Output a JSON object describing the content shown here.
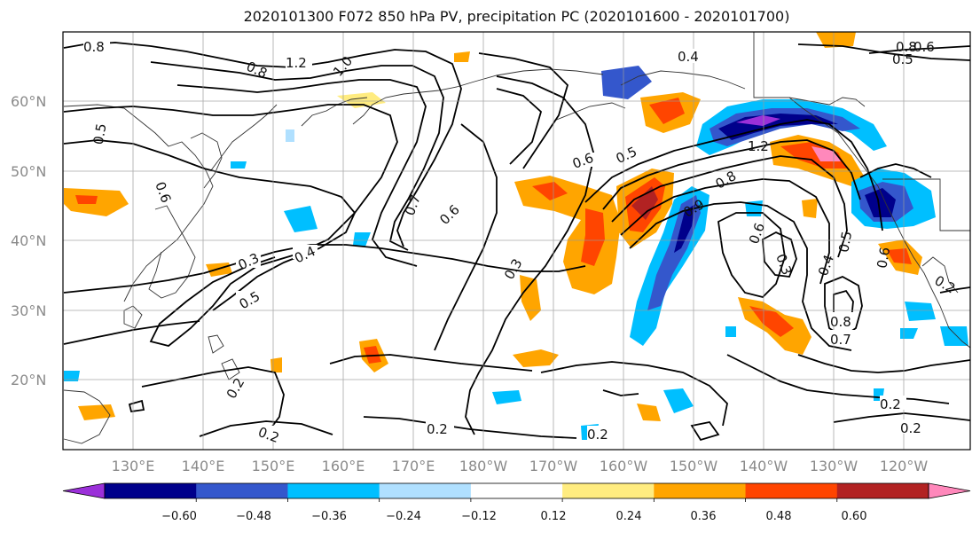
{
  "title": "2020101300 F072 850 hPa PV, precipitation PC (2020101600 - 2020101700)",
  "map": {
    "lat_labels": [
      "60°N",
      "50°N",
      "40°N",
      "30°N",
      "20°N"
    ],
    "lon_labels": [
      "130°E",
      "140°E",
      "150°E",
      "160°E",
      "170°E",
      "180°W",
      "170°W",
      "160°W",
      "150°W",
      "140°W",
      "130°W",
      "120°W"
    ],
    "contour_labels": [
      "0.8",
      "1.2",
      "1.0",
      "0.8",
      "0.4",
      "0.8",
      "0.5",
      "0.6",
      "0.5",
      "0.6",
      "0.5",
      "0.7",
      "0.6",
      "0.3",
      "0.4",
      "0.5",
      "0.3",
      "1.2",
      "0.8",
      "0.9",
      "0.6",
      "0.3",
      "0.4",
      "0.5",
      "0.6",
      "0.8",
      "0.7",
      "0.2",
      "0.2",
      "0.2",
      "0.2",
      "0.2",
      "0.2",
      "0.6",
      "0.2"
    ],
    "colors": {
      "coast": "#333333",
      "contour": "#000000",
      "grid": "#9a9a9a"
    }
  },
  "colorbar": {
    "ticks": [
      "−0.60",
      "−0.48",
      "−0.36",
      "−0.24",
      "−0.12",
      "0.12",
      "0.24",
      "0.36",
      "0.48",
      "0.60"
    ],
    "colors": [
      "#9b30d9",
      "#00008b",
      "#3457cc",
      "#00bfff",
      "#b0e0ff",
      "#ffffff",
      "#ffec80",
      "#ffa500",
      "#ff4500",
      "#b22222",
      "#ff88bb"
    ]
  }
}
